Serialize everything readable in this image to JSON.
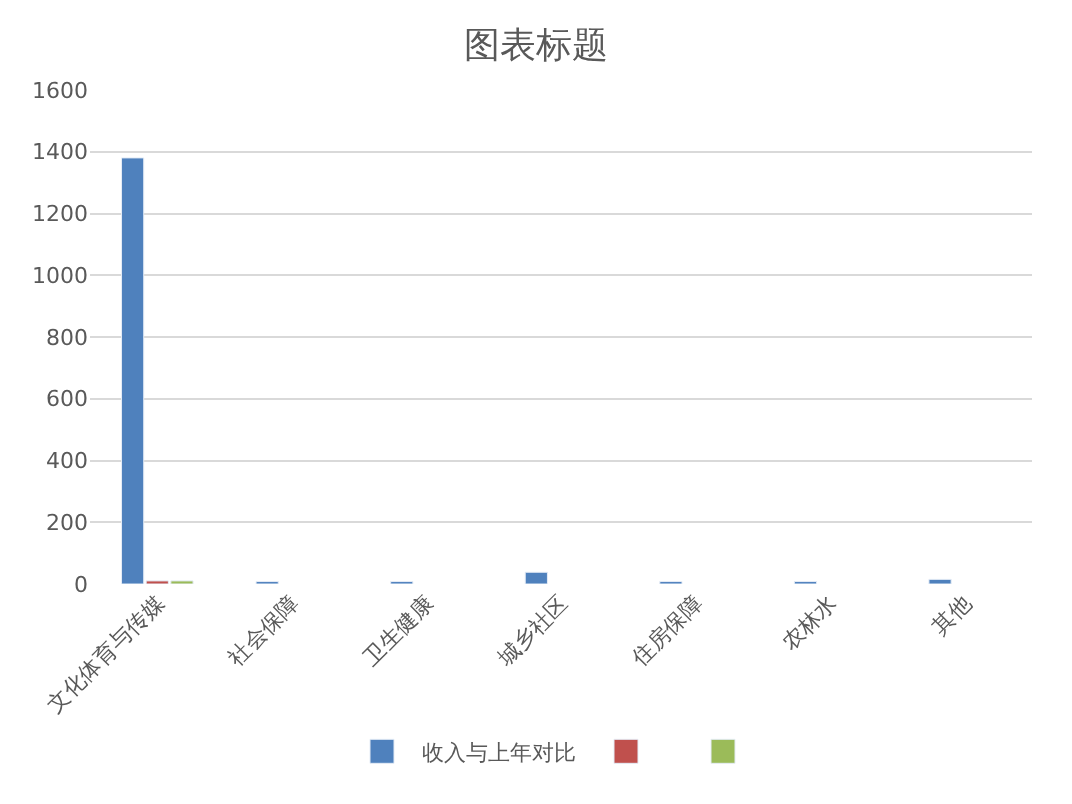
{
  "chart_data": {
    "type": "bar",
    "title": "图表标题",
    "categories": [
      "文化体育与传媒",
      "社会保障",
      "卫生健康",
      "城乡社区",
      "住房保障",
      "农林水",
      "其他"
    ],
    "series": [
      {
        "name": "收入与上年对比",
        "color": "#4f81bd",
        "values": [
          1380,
          8,
          8,
          38,
          8,
          8,
          15
        ]
      },
      {
        "color": "#c0504d",
        "values": [
          10,
          null,
          null,
          null,
          null,
          null,
          null
        ]
      },
      {
        "color": "#9bbb59",
        "values": [
          10,
          null,
          null,
          null,
          null,
          null,
          null
        ]
      }
    ],
    "ylim": [
      0,
      1600
    ],
    "yticks": [
      0,
      200,
      400,
      600,
      800,
      1000,
      1200,
      1400,
      1600
    ],
    "grid": "y",
    "legend": "bottom"
  }
}
